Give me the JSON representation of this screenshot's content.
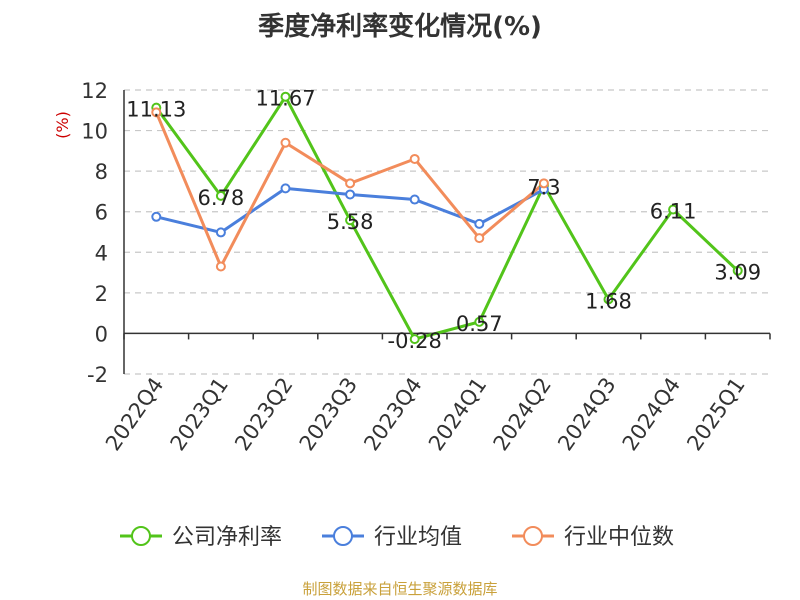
{
  "title": "季度净利率变化情况(%)",
  "source": "制图数据来自恒生聚源数据库",
  "chart_data": {
    "type": "line",
    "title": "季度净利率变化情况(%)",
    "ylabel": "(%)",
    "xlabel": "",
    "categories": [
      "2022Q4",
      "2023Q1",
      "2023Q2",
      "2023Q3",
      "2023Q4",
      "2024Q1",
      "2024Q2",
      "2024Q3",
      "2024Q4",
      "2025Q1"
    ],
    "ylim": [
      -2,
      12
    ],
    "yticks": [
      -2,
      0,
      2,
      4,
      6,
      8,
      10,
      12
    ],
    "grid": true,
    "legend_position": "bottom",
    "series": [
      {
        "name": "公司净利率",
        "color": "#52c41a",
        "values": [
          11.13,
          6.78,
          11.67,
          5.58,
          -0.28,
          0.57,
          7.3,
          1.68,
          6.11,
          3.09
        ],
        "labels": [
          "11.13",
          "6.78",
          "11.67",
          "5.58",
          "-0.28",
          "0.57",
          "7.3",
          "1.68",
          "6.11",
          "3.09"
        ]
      },
      {
        "name": "行业均值",
        "color": "#4a7fdc",
        "values": [
          5.75,
          4.98,
          7.15,
          6.85,
          6.6,
          5.4,
          7.1,
          null,
          null,
          null
        ]
      },
      {
        "name": "行业中位数",
        "color": "#f28c5b",
        "values": [
          10.9,
          3.3,
          9.4,
          7.4,
          8.6,
          4.7,
          7.4,
          null,
          null,
          null
        ]
      }
    ]
  }
}
